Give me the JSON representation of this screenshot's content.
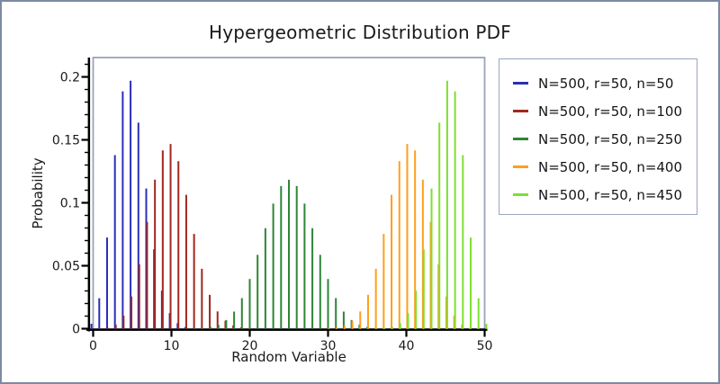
{
  "title": "Hypergeometric Distribution PDF",
  "colors": {
    "axis": "#000000",
    "plot_border": "#9aa4b8",
    "legend_border": "#9aa5c0",
    "outer_border": "#7c8aa1",
    "text": "#1a1a1a"
  },
  "chart_data": {
    "type": "bar",
    "subtype": "stem",
    "title": "Hypergeometric Distribution PDF",
    "xlabel": "Random Variable",
    "ylabel": "Probability",
    "xlim": [
      0,
      50
    ],
    "ylim": [
      0,
      0.215
    ],
    "x_ticks": [
      0,
      10,
      20,
      30,
      40,
      50
    ],
    "y_ticks": [
      0,
      0.05,
      0.1,
      0.15,
      0.2
    ],
    "y_tick_labels": [
      "0",
      "0.05",
      "0.1",
      "0.15",
      "0.2"
    ],
    "y_minor_tick_step": 0.01,
    "grid": false,
    "legend_position": "right-outside",
    "series": [
      {
        "name": "N=500, r=50, n=50",
        "color": "#2a2eb8",
        "start_x": 0,
        "values": [
          0.0039,
          0.0242,
          0.0724,
          0.1379,
          0.1885,
          0.197,
          0.1637,
          0.1113,
          0.063,
          0.0302,
          0.0124,
          0.0044,
          0.0013,
          0.0004,
          0.0001
        ]
      },
      {
        "name": "N=500, r=50, n=100",
        "color": "#a3271e",
        "start_x": 1,
        "values": [
          0.0001,
          0.0007,
          0.0032,
          0.0103,
          0.0256,
          0.0512,
          0.0848,
          0.1184,
          0.1416,
          0.1467,
          0.133,
          0.1063,
          0.0753,
          0.0476,
          0.0269,
          0.0137,
          0.0063,
          0.0026,
          0.001,
          0.0003
        ]
      },
      {
        "name": "N=500, r=50, n=250",
        "color": "#2e8636",
        "start_x": 13,
        "values": [
          0.0002,
          0.0005,
          0.0014,
          0.0032,
          0.0069,
          0.0136,
          0.0243,
          0.0395,
          0.0587,
          0.0798,
          0.0994,
          0.1133,
          0.1183,
          0.1133,
          0.0994,
          0.0798,
          0.0587,
          0.0395,
          0.0243,
          0.0136,
          0.0069,
          0.0032,
          0.0014,
          0.0005,
          0.0002
        ]
      },
      {
        "name": "N=500, r=50, n=400",
        "color": "#ff9f1a",
        "start_x": 30,
        "values": [
          0.0003,
          0.001,
          0.0026,
          0.0063,
          0.0137,
          0.0269,
          0.0476,
          0.0753,
          0.1063,
          0.133,
          0.1467,
          0.1416,
          0.1184,
          0.0848,
          0.0512,
          0.0256,
          0.0103,
          0.0032,
          0.0007,
          0.0001
        ]
      },
      {
        "name": "N=500, r=50, n=450",
        "color": "#7de02e",
        "start_x": 36,
        "values": [
          0.0001,
          0.0004,
          0.0013,
          0.0044,
          0.0124,
          0.0302,
          0.063,
          0.1113,
          0.1637,
          0.197,
          0.1885,
          0.1379,
          0.0724,
          0.0242,
          0.0039
        ]
      }
    ]
  }
}
